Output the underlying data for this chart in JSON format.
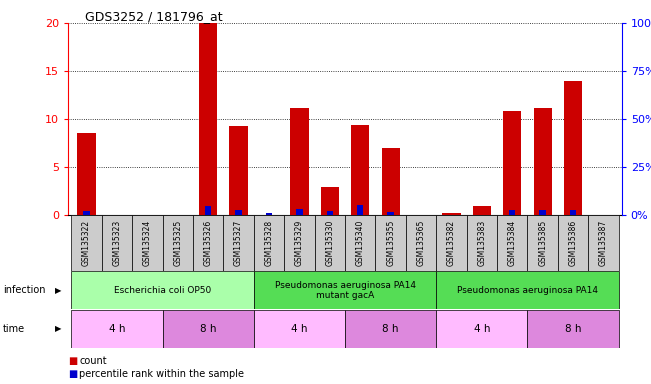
{
  "title": "GDS3252 / 181796_at",
  "samples": [
    "GSM135322",
    "GSM135323",
    "GSM135324",
    "GSM135325",
    "GSM135326",
    "GSM135327",
    "GSM135328",
    "GSM135329",
    "GSM135330",
    "GSM135340",
    "GSM135355",
    "GSM135365",
    "GSM135382",
    "GSM135383",
    "GSM135384",
    "GSM135385",
    "GSM135386",
    "GSM135387"
  ],
  "counts": [
    8.5,
    0,
    0,
    0,
    20,
    9.3,
    0,
    11.2,
    2.9,
    9.4,
    7.0,
    0,
    0.2,
    0.9,
    10.8,
    11.1,
    14.0,
    0
  ],
  "percentile": [
    2.2,
    0,
    0,
    0,
    4.9,
    2.5,
    1.0,
    3.2,
    2.0,
    5.2,
    1.5,
    0,
    0.1,
    0,
    2.5,
    2.5,
    2.5,
    0
  ],
  "ylim_left": [
    0,
    20
  ],
  "ylim_right": [
    0,
    100
  ],
  "yticks_left": [
    0,
    5,
    10,
    15,
    20
  ],
  "yticks_right": [
    0,
    25,
    50,
    75,
    100
  ],
  "bar_color": "#cc0000",
  "percentile_color": "#0000cc",
  "infection_groups": [
    {
      "label": "Escherichia coli OP50",
      "start": 0,
      "end": 6,
      "color": "#aaffaa"
    },
    {
      "label": "Pseudomonas aeruginosa PA14\nmutant gacA",
      "start": 6,
      "end": 12,
      "color": "#55dd55"
    },
    {
      "label": "Pseudomonas aeruginosa PA14",
      "start": 12,
      "end": 18,
      "color": "#55dd55"
    }
  ],
  "time_groups": [
    {
      "label": "4 h",
      "start": 0,
      "end": 3,
      "color": "#ffbbff"
    },
    {
      "label": "8 h",
      "start": 3,
      "end": 6,
      "color": "#dd88dd"
    },
    {
      "label": "4 h",
      "start": 6,
      "end": 9,
      "color": "#ffbbff"
    },
    {
      "label": "8 h",
      "start": 9,
      "end": 12,
      "color": "#dd88dd"
    },
    {
      "label": "4 h",
      "start": 12,
      "end": 15,
      "color": "#ffbbff"
    },
    {
      "label": "8 h",
      "start": 15,
      "end": 18,
      "color": "#dd88dd"
    }
  ],
  "sample_bg": "#cccccc",
  "infection_label": "infection",
  "time_label": "time",
  "legend_count_label": "count",
  "legend_percentile_label": "percentile rank within the sample"
}
